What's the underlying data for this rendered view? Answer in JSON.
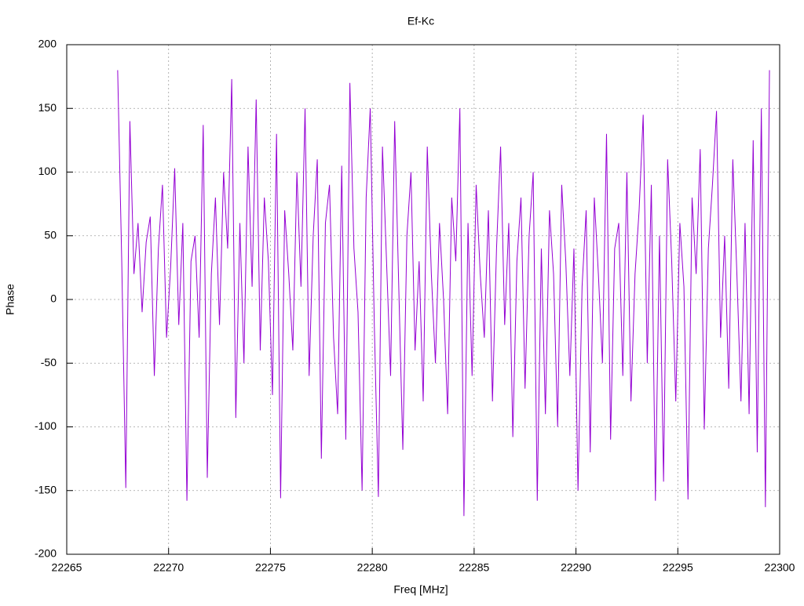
{
  "chart_data": {
    "type": "line",
    "title": "Ef-Kc",
    "x_label": "Freq [MHz]",
    "y_label": "Phase",
    "color": "#9400d3",
    "grid": true,
    "xlim": [
      22265,
      22300
    ],
    "xticks": [
      22265,
      22270,
      22275,
      22280,
      22285,
      22290,
      22295,
      22300
    ],
    "ylim": [
      -200,
      200
    ],
    "yticks": [
      -200,
      -150,
      -100,
      -50,
      0,
      50,
      100,
      150,
      200
    ],
    "x": [
      22267.5,
      22267.7,
      22267.9,
      22268.1,
      22268.3,
      22268.5,
      22268.7,
      22268.9,
      22269.1,
      22269.3,
      22269.5,
      22269.7,
      22269.9,
      22270.1,
      22270.3,
      22270.5,
      22270.7,
      22270.9,
      22271.1,
      22271.3,
      22271.5,
      22271.7,
      22271.9,
      22272.1,
      22272.3,
      22272.5,
      22272.7,
      22272.9,
      22273.1,
      22273.3,
      22273.5,
      22273.7,
      22273.9,
      22274.1,
      22274.3,
      22274.5,
      22274.7,
      22274.9,
      22275.1,
      22275.3,
      22275.5,
      22275.7,
      22275.9,
      22276.1,
      22276.3,
      22276.5,
      22276.7,
      22276.9,
      22277.1,
      22277.3,
      22277.5,
      22277.7,
      22277.9,
      22278.1,
      22278.3,
      22278.5,
      22278.7,
      22278.9,
      22279.1,
      22279.3,
      22279.5,
      22279.7,
      22279.9,
      22280.1,
      22280.3,
      22280.5,
      22280.7,
      22280.9,
      22281.1,
      22281.3,
      22281.5,
      22281.7,
      22281.9,
      22282.1,
      22282.3,
      22282.5,
      22282.7,
      22282.9,
      22283.1,
      22283.3,
      22283.5,
      22283.7,
      22283.9,
      22284.1,
      22284.3,
      22284.5,
      22284.7,
      22284.9,
      22285.1,
      22285.3,
      22285.5,
      22285.7,
      22285.9,
      22286.1,
      22286.3,
      22286.5,
      22286.7,
      22286.9,
      22287.1,
      22287.3,
      22287.5,
      22287.7,
      22287.9,
      22288.1,
      22288.3,
      22288.5,
      22288.7,
      22288.9,
      22289.1,
      22289.3,
      22289.5,
      22289.7,
      22289.9,
      22290.1,
      22290.3,
      22290.5,
      22290.7,
      22290.9,
      22291.1,
      22291.3,
      22291.5,
      22291.7,
      22291.9,
      22292.1,
      22292.3,
      22292.5,
      22292.7,
      22292.9,
      22293.1,
      22293.3,
      22293.5,
      22293.7,
      22293.9,
      22294.1,
      22294.3,
      22294.5,
      22294.7,
      22294.9,
      22295.1,
      22295.3,
      22295.5,
      22295.7,
      22295.9,
      22296.1,
      22296.3,
      22296.5,
      22296.7,
      22296.9,
      22297.1,
      22297.3,
      22297.5,
      22297.7,
      22297.9,
      22298.1,
      22298.3,
      22298.5,
      22298.7,
      22298.9,
      22299.1,
      22299.3,
      22299.5
    ],
    "values": [
      180,
      30,
      -148,
      140,
      20,
      60,
      -10,
      45,
      65,
      -60,
      40,
      90,
      -30,
      25,
      103,
      -20,
      60,
      -158,
      30,
      50,
      -30,
      137,
      -140,
      20,
      80,
      -20,
      100,
      40,
      173,
      -93,
      60,
      -50,
      120,
      10,
      157,
      -40,
      80,
      30,
      -75,
      130,
      -156,
      70,
      20,
      -40,
      100,
      10,
      150,
      -60,
      50,
      110,
      -125,
      60,
      90,
      -30,
      -90,
      105,
      -110,
      170,
      40,
      -10,
      -150,
      80,
      150,
      -20,
      -155,
      120,
      30,
      -60,
      140,
      10,
      -118,
      50,
      100,
      -40,
      30,
      -80,
      120,
      20,
      -50,
      60,
      0,
      -90,
      80,
      30,
      150,
      -170,
      60,
      -60,
      90,
      20,
      -30,
      70,
      -80,
      40,
      120,
      -20,
      60,
      -108,
      30,
      80,
      -70,
      50,
      100,
      -158,
      40,
      -90,
      70,
      20,
      -100,
      90,
      30,
      -60,
      40,
      -150,
      10,
      70,
      -120,
      80,
      20,
      -50,
      130,
      -110,
      40,
      60,
      -60,
      100,
      -80,
      20,
      70,
      145,
      -50,
      90,
      -158,
      50,
      -143,
      110,
      30,
      -80,
      60,
      10,
      -157,
      80,
      20,
      118,
      -102,
      40,
      90,
      148,
      -30,
      50,
      -70,
      110,
      20,
      -80,
      60,
      -90,
      125,
      -120,
      150,
      -163,
      180
    ]
  }
}
